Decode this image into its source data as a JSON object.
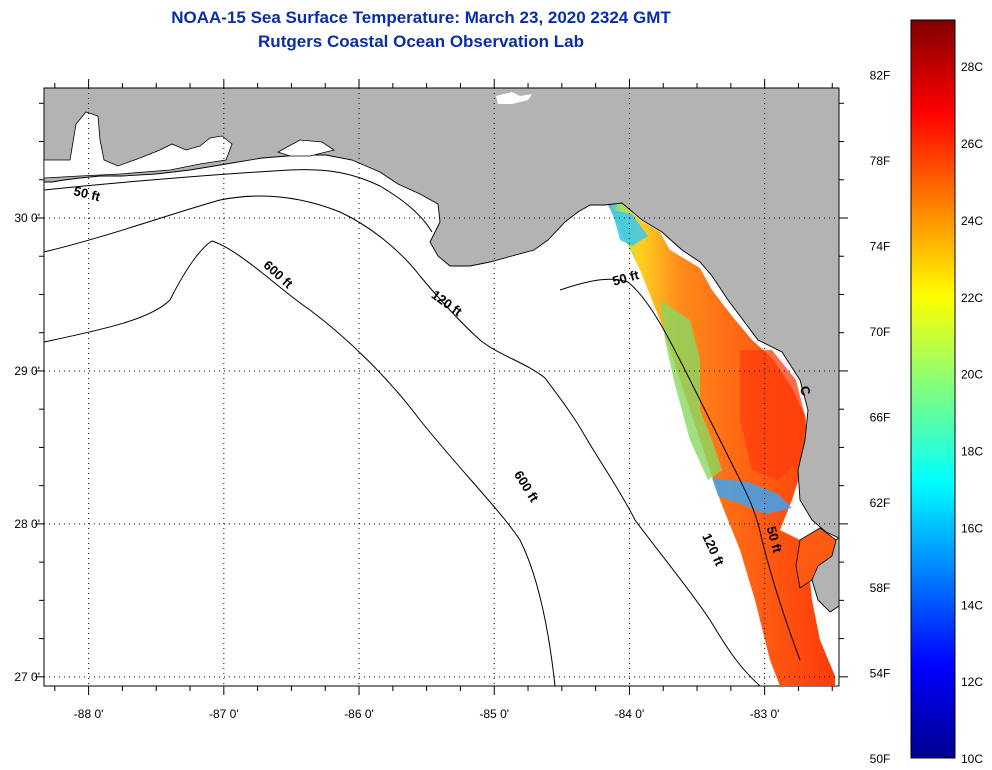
{
  "title": {
    "line1": "NOAA-15 Sea Surface Temperature:  March 23, 2020 2324 GMT",
    "line2": "Rutgers Coastal Ocean Observation Lab"
  },
  "map": {
    "lon_range": [
      -88.33,
      -82.45
    ],
    "lat_range": [
      26.94,
      30.85
    ],
    "lon_ticks": [
      {
        "value": -88,
        "label": "-88 0'"
      },
      {
        "value": -87,
        "label": "-87 0'"
      },
      {
        "value": -86,
        "label": "-86 0'"
      },
      {
        "value": -85,
        "label": "-85 0'"
      },
      {
        "value": -84,
        "label": "-84 0'"
      },
      {
        "value": -83,
        "label": "-83 0'"
      }
    ],
    "lat_ticks": [
      {
        "value": 30,
        "label": "30 0'"
      },
      {
        "value": 29,
        "label": "29 0'"
      },
      {
        "value": 28,
        "label": "28 0'"
      },
      {
        "value": 27,
        "label": "27 0'"
      }
    ],
    "contour_labels": [
      {
        "text": "50 ft",
        "lon": -88.02,
        "lat": 30.13,
        "rot": 14
      },
      {
        "text": "600 ft",
        "lon": -86.62,
        "lat": 29.61,
        "rot": 42
      },
      {
        "text": "120 ft",
        "lon": -85.37,
        "lat": 29.42,
        "rot": 36
      },
      {
        "text": "50 ft",
        "lon": -84.02,
        "lat": 29.58,
        "rot": -15
      },
      {
        "text": "600 ft",
        "lon": -84.79,
        "lat": 28.23,
        "rot": 58
      },
      {
        "text": "120 ft",
        "lon": -83.41,
        "lat": 27.82,
        "rot": 65
      },
      {
        "text": "50 ft",
        "lon": -82.96,
        "lat": 27.89,
        "rot": 75
      },
      {
        "text": "C",
        "lon": -82.73,
        "lat": 28.86,
        "rot": 70
      }
    ]
  },
  "colorbar": {
    "celsius_range": [
      10,
      29.2
    ],
    "fahrenheit_labels": [
      "82F",
      "78F",
      "74F",
      "70F",
      "66F",
      "62F",
      "58F",
      "54F",
      "50F"
    ],
    "celsius_labels": [
      "28C",
      "26C",
      "24C",
      "22C",
      "20C",
      "18C",
      "16C",
      "14C",
      "12C",
      "10C"
    ]
  },
  "colors": {
    "land": "#b3b3b3",
    "title": "#0b2ea8",
    "sst_dominant": "#ff6010"
  }
}
